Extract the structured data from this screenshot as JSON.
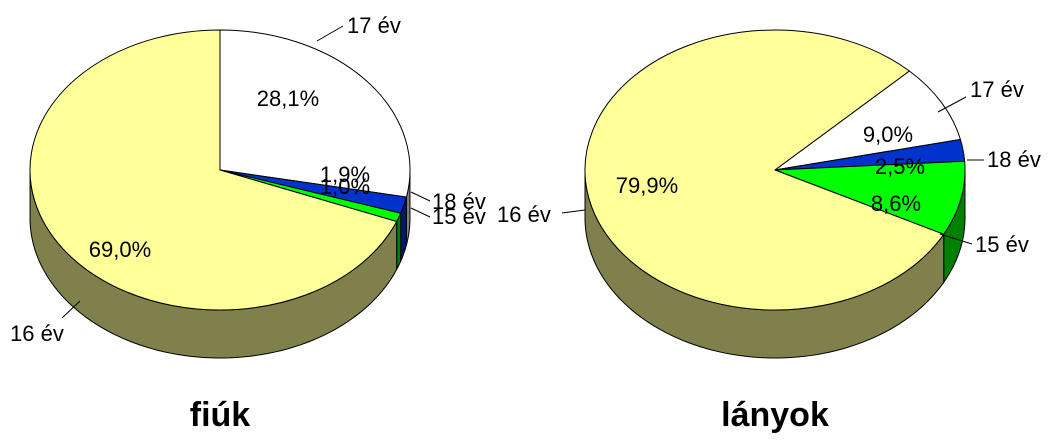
{
  "chart_data": [
    {
      "type": "pie",
      "style": "3d",
      "title": "fiúk",
      "slices": [
        {
          "label": "17 év",
          "value": 28.1,
          "value_label": "28,1%",
          "color": "#FFFFFF"
        },
        {
          "label": "18 év",
          "value": 1.9,
          "value_label": "1,9%",
          "color": "#0033CC"
        },
        {
          "label": "15 év",
          "value": 1.0,
          "value_label": "1,0%",
          "color": "#00FF00"
        },
        {
          "label": "16 év",
          "value": 69.0,
          "value_label": "69,0%",
          "color": "#FFFF99"
        }
      ]
    },
    {
      "type": "pie",
      "style": "3d",
      "title": "lányok",
      "slices": [
        {
          "label": "17 év",
          "value": 9.0,
          "value_label": "9,0%",
          "color": "#FFFFFF"
        },
        {
          "label": "18 év",
          "value": 2.5,
          "value_label": "2,5%",
          "color": "#0033CC"
        },
        {
          "label": "15 év",
          "value": 8.6,
          "value_label": "8,6%",
          "color": "#00FF00"
        },
        {
          "label": "16 év",
          "value": 79.9,
          "value_label": "79,9%",
          "color": "#FFFF99"
        }
      ]
    }
  ]
}
